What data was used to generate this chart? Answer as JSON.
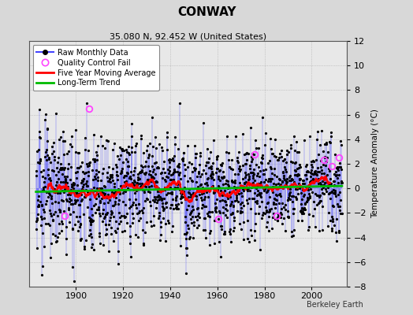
{
  "title": "CONWAY",
  "subtitle": "35.080 N, 92.452 W (United States)",
  "ylabel": "Temperature Anomaly (°C)",
  "attribution": "Berkeley Earth",
  "xlim": [
    1880,
    2015
  ],
  "ylim": [
    -8,
    12
  ],
  "yticks": [
    -8,
    -6,
    -4,
    -2,
    0,
    2,
    4,
    6,
    8,
    10,
    12
  ],
  "xticks": [
    1900,
    1920,
    1940,
    1960,
    1980,
    2000
  ],
  "raw_color": "#4444ff",
  "dot_color": "#000000",
  "qc_color": "#ff44ff",
  "moving_avg_color": "#ff0000",
  "trend_color": "#00bb00",
  "background_color": "#d8d8d8",
  "plot_bg_color": "#e8e8e8",
  "seed": 123,
  "start_year": 1883.0,
  "end_year": 2012.9
}
